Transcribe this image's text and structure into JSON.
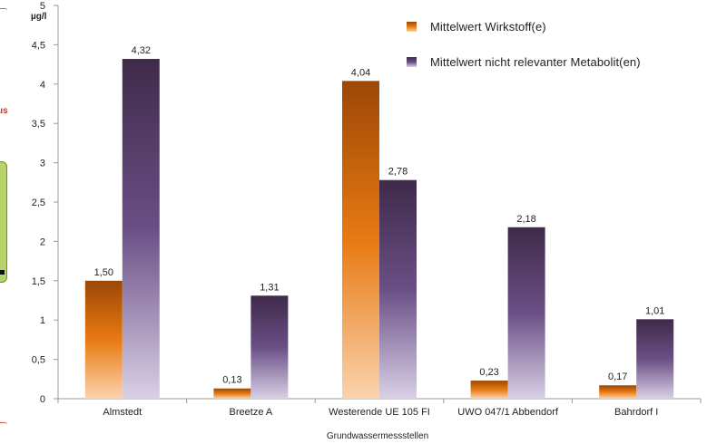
{
  "chart_data": {
    "type": "bar",
    "title": "",
    "ylabel": "µg/l",
    "xlabel": "Grundwassermessstellen",
    "categories": [
      "Almstedt",
      "Breetze A",
      "Westerende UE 105 FI",
      "UWO 047/1 Abbendorf",
      "Bahrdorf I"
    ],
    "series": [
      {
        "name": "Mittelwert  Wirkstoff(e)",
        "values": [
          1.5,
          0.13,
          4.04,
          0.23,
          0.17
        ],
        "labels": [
          "1,50",
          "0,13",
          "4,04",
          "0,23",
          "0,17"
        ],
        "color_top": "#9c4706",
        "color_mid": "#e87a12",
        "color_bottom": "#fbd3ae"
      },
      {
        "name": "Mittelwert  nicht relevanter Metabolit(en)",
        "values": [
          4.32,
          1.31,
          2.78,
          2.18,
          1.01
        ],
        "labels": [
          "4,32",
          "1,31",
          "2,78",
          "2,18",
          "1,01"
        ],
        "color_top": "#3f2a4a",
        "color_mid": "#6a4f85",
        "color_bottom": "#d9d0e6"
      }
    ],
    "ylim": [
      0,
      5
    ],
    "yticks": [
      0,
      0.5,
      1,
      1.5,
      2,
      2.5,
      3,
      3.5,
      4,
      4.5,
      5
    ],
    "ytick_labels": [
      "0",
      "0,5",
      "1",
      "1,5",
      "2",
      "2,5",
      "3",
      "3,5",
      "4",
      "4,5",
      "5"
    ],
    "grid": false,
    "legend_position": "top-right"
  },
  "edge_fragments": {
    "left_text": "us"
  }
}
